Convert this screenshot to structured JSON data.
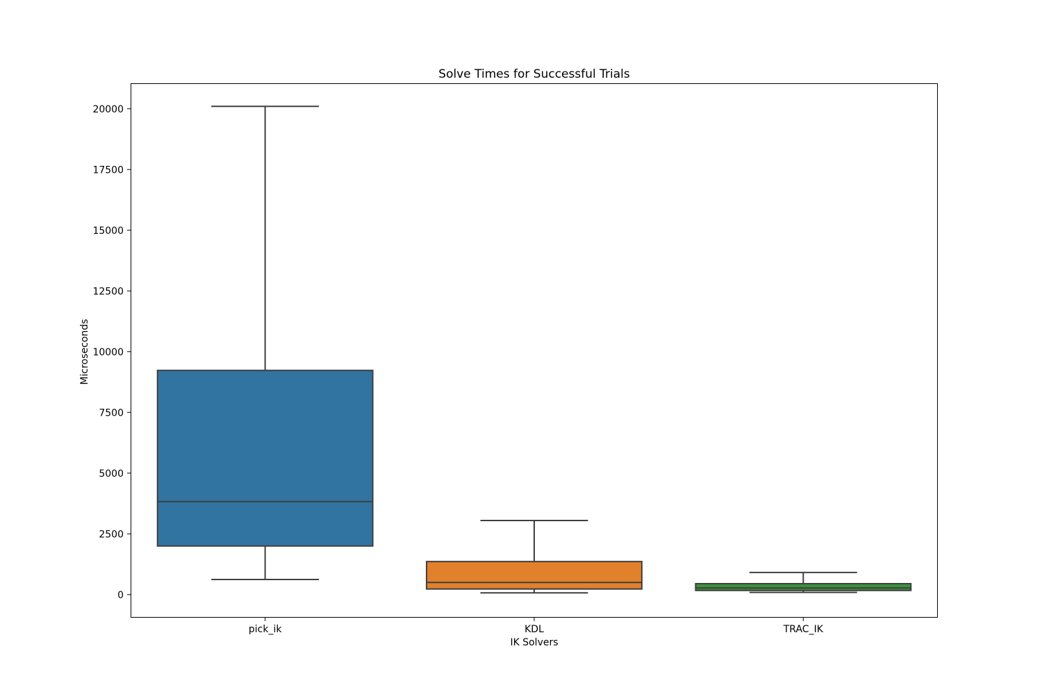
{
  "chart_data": {
    "type": "box",
    "title": "Solve Times for Successful Trials",
    "xlabel": "IK Solvers",
    "ylabel": "Microseconds",
    "ylim": [
      -950,
      21050
    ],
    "yticks": [
      0,
      2500,
      5000,
      7500,
      10000,
      12500,
      15000,
      17500,
      20000
    ],
    "grid": false,
    "categories": [
      "pick_ik",
      "KDL",
      "TRAC_IK"
    ],
    "colors": [
      "#3274a1",
      "#e1812c",
      "#3a923a"
    ],
    "edge_color": "#3f3f3f",
    "boxes": [
      {
        "name": "pick_ik",
        "whisker_low": 620,
        "q1": 2000,
        "median": 3830,
        "q3": 9230,
        "whisker_high": 20100
      },
      {
        "name": "KDL",
        "whisker_low": 70,
        "q1": 230,
        "median": 500,
        "q3": 1360,
        "whisker_high": 3050
      },
      {
        "name": "TRAC_IK",
        "whisker_low": 90,
        "q1": 170,
        "median": 270,
        "q3": 450,
        "whisker_high": 910
      }
    ]
  }
}
